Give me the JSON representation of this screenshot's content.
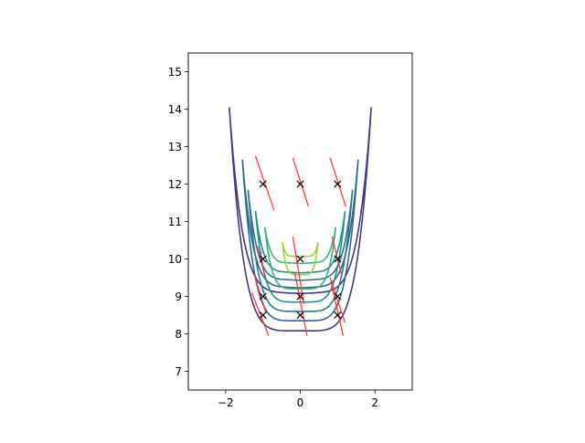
{
  "chart_data": {
    "type": "contour",
    "title": "",
    "xlabel": "",
    "ylabel": "",
    "xlim": [
      -3,
      3
    ],
    "ylim": [
      6.5,
      15.5
    ],
    "x_ticks": [
      {
        "value": -2,
        "label": "−2"
      },
      {
        "value": 0,
        "label": "0"
      },
      {
        "value": 2,
        "label": "2"
      }
    ],
    "y_ticks": [
      {
        "value": 7,
        "label": "7"
      },
      {
        "value": 8,
        "label": "8"
      },
      {
        "value": 9,
        "label": "9"
      },
      {
        "value": 10,
        "label": "10"
      },
      {
        "value": 11,
        "label": "11"
      },
      {
        "value": 12,
        "label": "12"
      },
      {
        "value": 13,
        "label": "13"
      },
      {
        "value": 14,
        "label": "14"
      },
      {
        "value": 15,
        "label": "15"
      }
    ],
    "grid": false,
    "legend": "none",
    "contour_levels": [
      {
        "name": "level-1",
        "color": "#443983",
        "width": 1.0,
        "inner_y": 8.08,
        "tip_y": 14.05,
        "tip_x": 1.9
      },
      {
        "name": "level-2",
        "color": "#31688e",
        "width": 0.88,
        "inner_y": 8.35,
        "tip_y": 12.65,
        "tip_x": 1.55
      },
      {
        "name": "level-3",
        "color": "#2a788e",
        "width": 0.83,
        "inner_y": 8.6,
        "tip_y": 11.85,
        "tip_x": 1.4
      },
      {
        "name": "level-4",
        "color": "#21918c",
        "width": 0.78,
        "inner_y": 8.85,
        "tip_y": 11.28,
        "tip_x": 1.2
      },
      {
        "name": "level-5",
        "color": "#35b779",
        "width": 0.68,
        "inner_y": 9.2,
        "tip_y": 10.85,
        "tip_x": 0.95
      },
      {
        "name": "level-6",
        "color": "#90d743",
        "width": 0.48,
        "inner_y": 9.58,
        "tip_y": 10.45,
        "tip_x": 0.48
      }
    ],
    "markers": {
      "symbol": "x",
      "color": "#000000",
      "points": [
        [
          -1,
          8.5
        ],
        [
          -1,
          9
        ],
        [
          -1,
          10
        ],
        [
          -1,
          12
        ],
        [
          0,
          8.5
        ],
        [
          0,
          9
        ],
        [
          0,
          10
        ],
        [
          0,
          12
        ],
        [
          1,
          8.5
        ],
        [
          1,
          9
        ],
        [
          1,
          10
        ],
        [
          1,
          12
        ]
      ]
    },
    "tangent_lines": {
      "color": "#ff3333",
      "segments": [
        {
          "x1": -1.3,
          "y1": 9.1,
          "x2": -0.85,
          "y2": 7.95
        },
        {
          "x1": -1.22,
          "y1": 9.55,
          "x2": -0.92,
          "y2": 8.55
        },
        {
          "x1": -1.15,
          "y1": 10.35,
          "x2": -0.95,
          "y2": 9.55
        },
        {
          "x1": -1.2,
          "y1": 12.75,
          "x2": -0.7,
          "y2": 11.3
        },
        {
          "x1": -0.15,
          "y1": 9.65,
          "x2": 0.18,
          "y2": 7.95
        },
        {
          "x1": -0.2,
          "y1": 10.6,
          "x2": 0.1,
          "y2": 8.8
        },
        {
          "x1": -0.2,
          "y1": 12.7,
          "x2": 0.22,
          "y2": 11.4
        },
        {
          "x1": 0.8,
          "y1": 12.7,
          "x2": 1.22,
          "y2": 11.4
        },
        {
          "x1": 0.85,
          "y1": 10.6,
          "x2": 1.1,
          "y2": 9.6
        },
        {
          "x1": 0.8,
          "y1": 9.5,
          "x2": 1.2,
          "y2": 8.3
        },
        {
          "x1": 0.82,
          "y1": 9.4,
          "x2": 1.15,
          "y2": 7.95
        }
      ]
    }
  }
}
